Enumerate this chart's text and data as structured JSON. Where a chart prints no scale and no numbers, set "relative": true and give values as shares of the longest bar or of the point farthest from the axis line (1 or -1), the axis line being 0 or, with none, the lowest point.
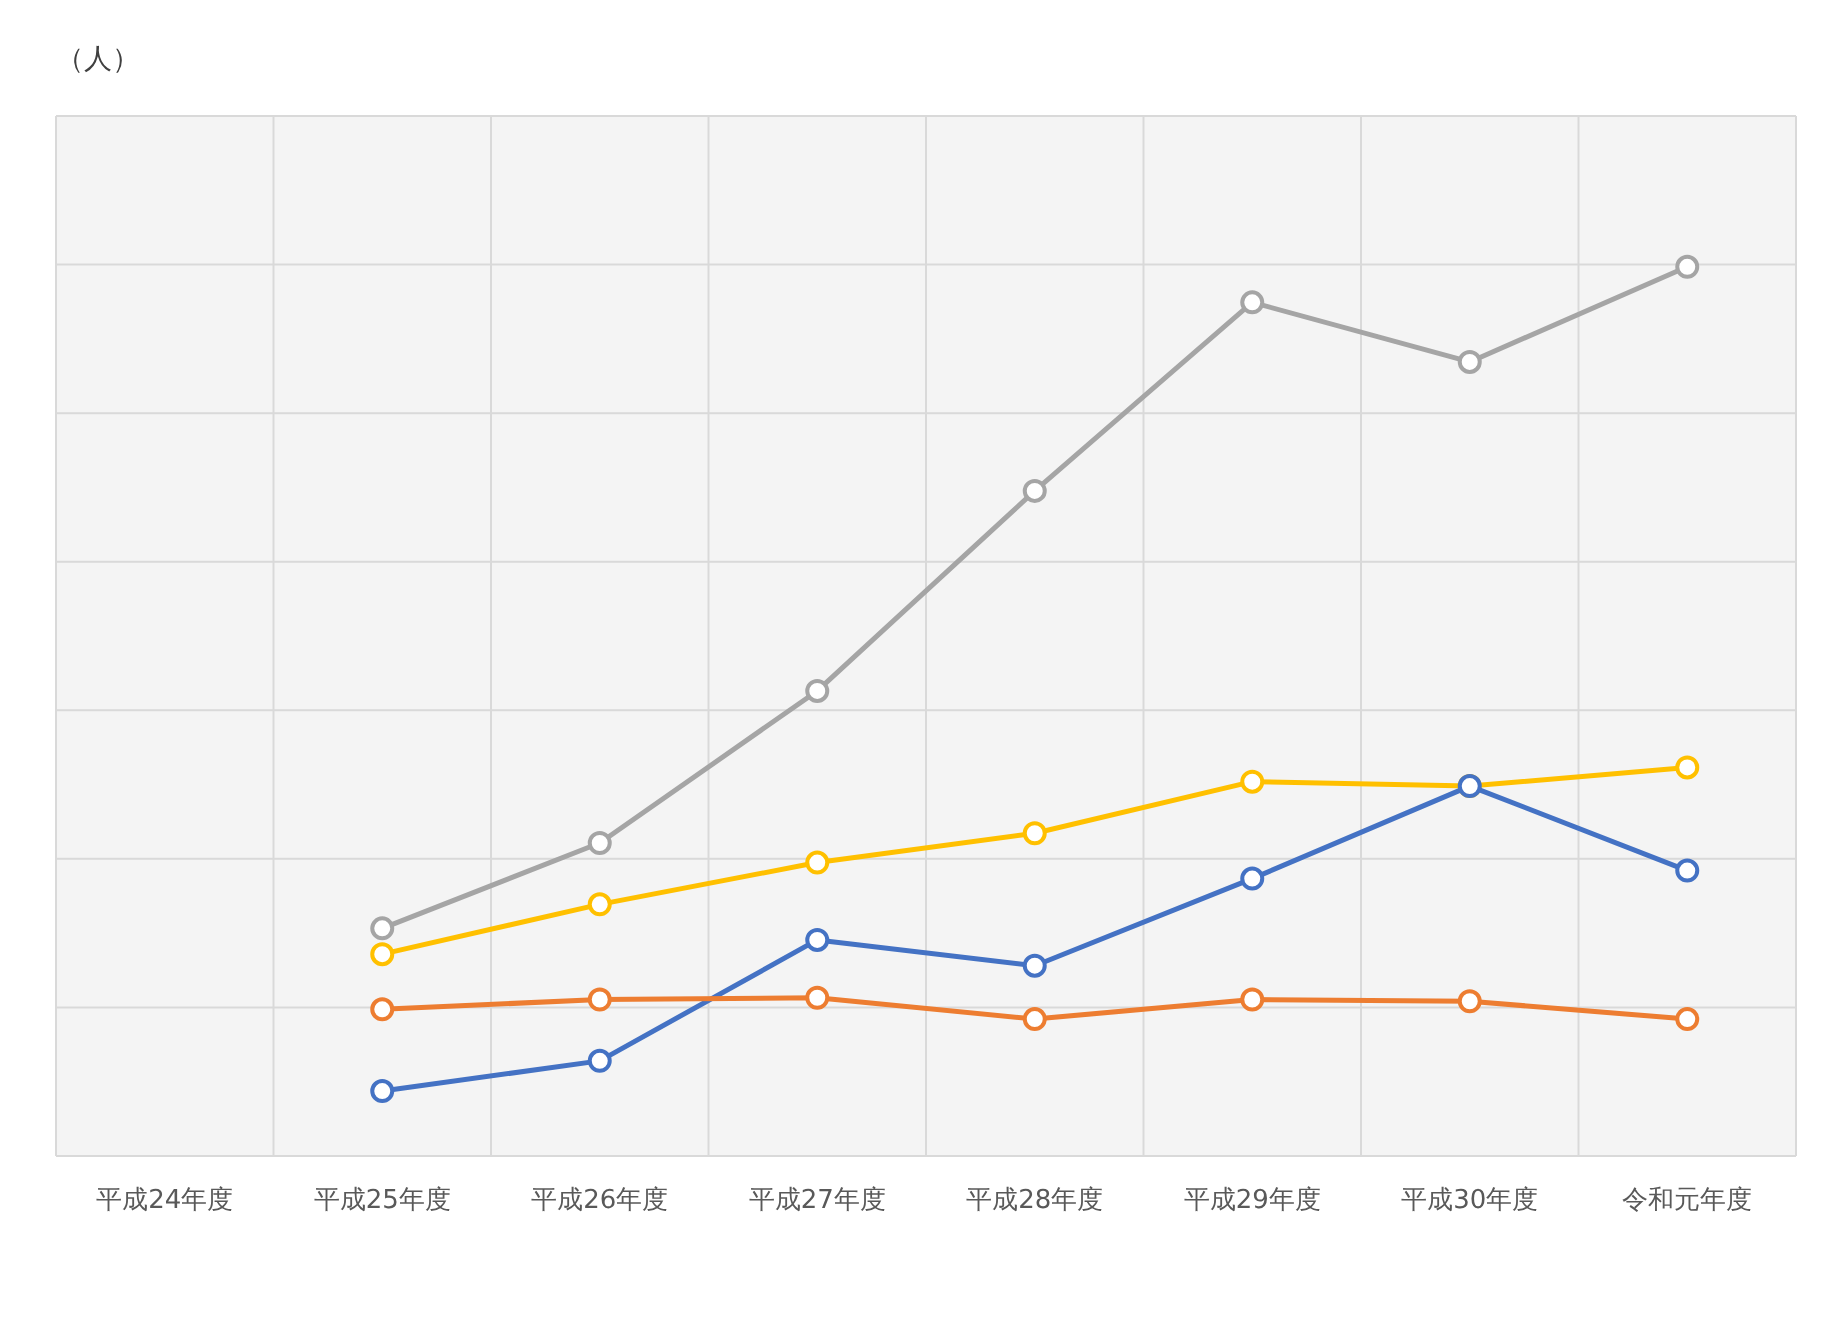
{
  "chart_data": {
    "type": "line",
    "relative": true,
    "annotations": [
      "（人）"
    ],
    "categories": [
      "平成24年度",
      "平成25年度",
      "平成26年度",
      "平成27年度",
      "平成28年度",
      "平成29年度",
      "平成30年度",
      "令和元年度"
    ],
    "series": [
      {
        "color": "#a5a5a5",
        "values": [
          null,
          0.256,
          0.352,
          0.523,
          0.748,
          0.96,
          0.893,
          1
        ]
      },
      {
        "color": "#ffc000",
        "values": [
          null,
          0.227,
          0.283,
          0.33,
          0.363,
          0.421,
          0.416,
          0.437
        ]
      },
      {
        "color": "#4472c4",
        "values": [
          null,
          0.073,
          0.107,
          0.243,
          0.214,
          0.312,
          0.416,
          0.321
        ]
      },
      {
        "color": "#ed7d31",
        "values": [
          null,
          0.165,
          0.176,
          0.178,
          0.154,
          0.176,
          0.174,
          0.154
        ]
      }
    ],
    "grid": true,
    "marker": "circle",
    "line_style": "solid"
  }
}
